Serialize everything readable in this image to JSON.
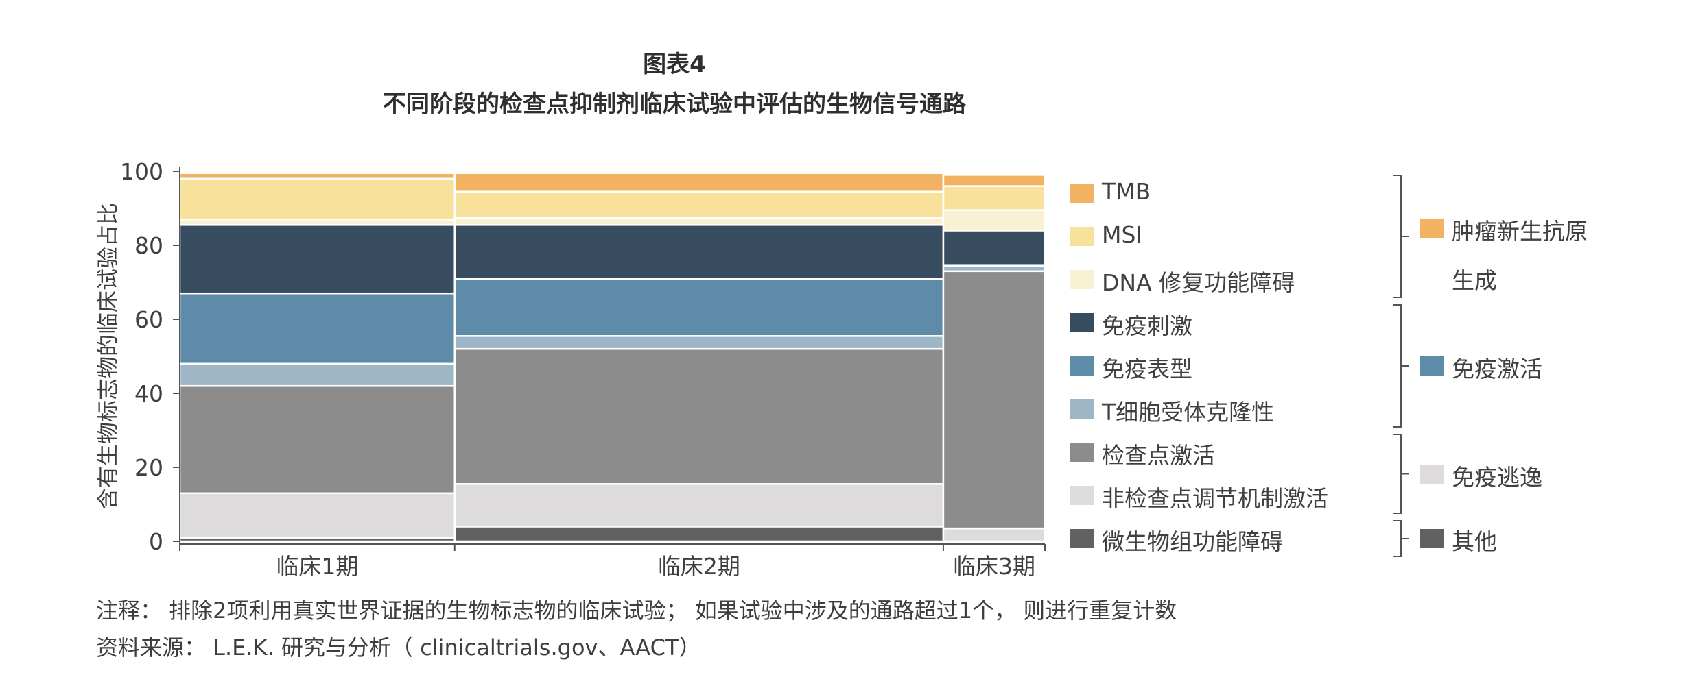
{
  "title": "图表4",
  "subtitle": "不同阶段的检查点抑制剂临床试验中评估的生物信号通路",
  "notes": {
    "note": "注释：  排除2项利用真实世界证据的生物标志物的临床试验；  如果试验中涉及的通路超过1个，  则进行重复计数",
    "source": "资料来源：  L.E.K. 研究与分析（ clinicaltrials.gov、AACT）"
  },
  "chart_data": {
    "type": "mekko",
    "ylabel": "含有生物标志物的临床试验占比",
    "ylim": [
      0,
      100
    ],
    "yticks": [
      0,
      20,
      40,
      60,
      80,
      100
    ],
    "categories": [
      "临床1期",
      "临床2期",
      "临床3期"
    ],
    "column_width_shares": [
      31.4,
      55.8,
      11.6
    ],
    "series": [
      {
        "name": "微生物组功能障碍",
        "color": "#616161",
        "values": [
          1,
          4,
          0
        ]
      },
      {
        "name": "非检查点调节机制激活",
        "color": "#dddbdb",
        "values": [
          12,
          11.5,
          3.5
        ]
      },
      {
        "name": "检查点激活",
        "color": "#8c8c8c",
        "values": [
          29,
          36.5,
          69.5
        ]
      },
      {
        "name": "T细胞受体克隆性",
        "color": "#9eb7c7",
        "values": [
          6,
          3.5,
          1.5
        ]
      },
      {
        "name": "免疫表型",
        "color": "#5e8ba7",
        "values": [
          19,
          15.5,
          0
        ]
      },
      {
        "name": "免疫刺激",
        "color": "#374c5e",
        "values": [
          18.5,
          14.5,
          9.5
        ]
      },
      {
        "name": "DNA 修复功能障碍",
        "color": "#f9f1d3",
        "values": [
          1.5,
          2,
          5.5
        ]
      },
      {
        "name": "MSI",
        "color": "#f7e19b",
        "values": [
          11,
          7,
          6.5
        ]
      },
      {
        "name": "TMB",
        "color": "#f3b262",
        "values": [
          1.5,
          5,
          3
        ]
      }
    ],
    "legend_order": [
      "TMB",
      "MSI",
      "DNA 修复功能障碍",
      "免疫刺激",
      "免疫表型",
      "T细胞受体克隆性",
      "检查点激活",
      "非检查点调节机制激活",
      "微生物组功能障碍"
    ],
    "groups": [
      {
        "name_line1": "肿瘤新生抗原",
        "name_line2": "生成",
        "color": "#f3b262",
        "members": [
          "TMB",
          "MSI",
          "DNA 修复功能障碍"
        ]
      },
      {
        "name_line1": "免疫激活",
        "name_line2": "",
        "color": "#5e8ba7",
        "members": [
          "免疫刺激",
          "免疫表型",
          "T细胞受体克隆性"
        ]
      },
      {
        "name_line1": "免疫逃逸",
        "name_line2": "",
        "color": "#dddbdb",
        "members": [
          "检查点激活",
          "非检查点调节机制激活"
        ]
      },
      {
        "name_line1": "其他",
        "name_line2": "",
        "color": "#616161",
        "members": [
          "微生物组功能障碍"
        ]
      }
    ]
  }
}
